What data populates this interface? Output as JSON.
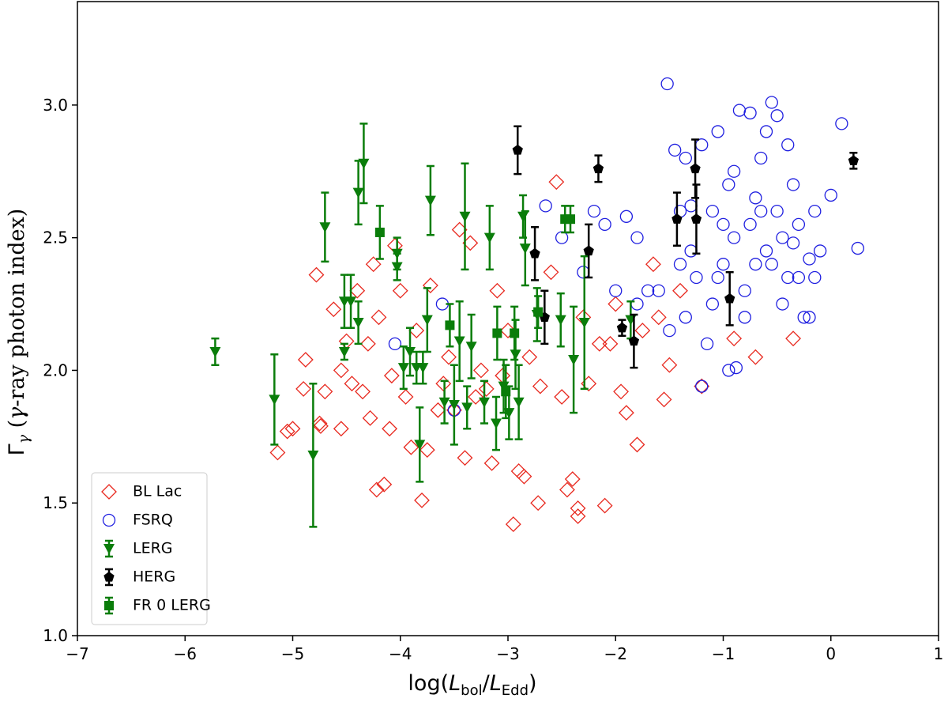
{
  "chart_data": {
    "type": "scatter",
    "xlabel": [
      "log(",
      "L",
      "bol",
      "/",
      "L",
      "Edd",
      ")"
    ],
    "ylabel": [
      "Γ",
      "γ",
      " (",
      "γ",
      "-ray photon index)"
    ],
    "xlim": [
      -7,
      1
    ],
    "ylim": [
      1,
      3.39
    ],
    "xticks": [
      {
        "value": -7,
        "label": "−7"
      },
      {
        "value": -6,
        "label": "−6"
      },
      {
        "value": -5,
        "label": "−5"
      },
      {
        "value": -4,
        "label": "−4"
      },
      {
        "value": -3,
        "label": "−3"
      },
      {
        "value": -2,
        "label": "−2"
      },
      {
        "value": -1,
        "label": "−1"
      },
      0,
      1
    ],
    "yticks": [
      {
        "value": 1,
        "label": "1.0"
      },
      1.5,
      {
        "value": 2,
        "label": "2.0"
      },
      2.5,
      {
        "value": 3,
        "label": "3.0"
      }
    ],
    "legend": "lower left",
    "series": [
      {
        "name": "BL Lac",
        "color": "#e8281e",
        "marker": "diamond",
        "x": [
          -5.14,
          -5.05,
          -5.0,
          -4.88,
          -4.9,
          -4.78,
          -4.75,
          -4.74,
          -4.7,
          -4.62,
          -4.55,
          -4.55,
          -4.5,
          -4.45,
          -4.4,
          -4.35,
          -4.3,
          -4.28,
          -4.25,
          -4.2,
          -4.22,
          -4.15,
          -4.1,
          -4.08,
          -4.05,
          -4.0,
          -3.95,
          -3.9,
          -3.85,
          -3.8,
          -3.75,
          -3.72,
          -3.65,
          -3.6,
          -3.55,
          -3.45,
          -3.4,
          -3.35,
          -3.3,
          -3.25,
          -3.2,
          -3.15,
          -3.1,
          -3.05,
          -2.95,
          -2.9,
          -2.85,
          -2.8,
          -2.72,
          -2.7,
          -2.6,
          -2.55,
          -2.5,
          -2.45,
          -2.4,
          -2.35,
          -2.35,
          -2.3,
          -2.25,
          -2.1,
          -2.05,
          -2.0,
          -1.95,
          -1.9,
          -1.8,
          -1.75,
          -1.6,
          -1.55,
          -1.5,
          -1.4,
          -1.2,
          -0.9,
          -0.7,
          -0.35,
          -1.65,
          -2.15,
          -3.0,
          -3.5
        ],
        "values": [
          1.69,
          1.77,
          1.78,
          2.04,
          1.93,
          2.36,
          1.8,
          1.79,
          1.92,
          2.23,
          1.78,
          2.0,
          2.11,
          1.95,
          2.3,
          1.92,
          2.1,
          1.82,
          2.4,
          2.2,
          1.55,
          1.57,
          1.78,
          1.98,
          2.47,
          2.3,
          1.9,
          1.71,
          2.15,
          1.51,
          1.7,
          2.32,
          1.85,
          1.95,
          2.05,
          2.53,
          1.67,
          2.48,
          1.9,
          2.0,
          1.93,
          1.65,
          2.3,
          1.98,
          1.42,
          1.62,
          1.6,
          2.05,
          1.5,
          1.94,
          2.37,
          2.71,
          1.9,
          1.55,
          1.59,
          1.45,
          1.48,
          2.2,
          1.95,
          1.49,
          2.1,
          2.25,
          1.92,
          1.84,
          1.72,
          2.15,
          2.2,
          1.89,
          2.02,
          2.3,
          1.94,
          2.12,
          2.05,
          2.12,
          2.4,
          2.1,
          2.15,
          1.85
        ]
      },
      {
        "name": "FSRQ",
        "color": "#1f1fe0",
        "marker": "circle",
        "x": [
          -3.61,
          -4.05,
          -3.5,
          -2.65,
          -2.5,
          -2.3,
          -2.2,
          -2.1,
          -1.9,
          -1.8,
          -1.7,
          -1.52,
          -1.45,
          -1.35,
          -1.3,
          -1.2,
          -1.1,
          -1.05,
          -1.0,
          -0.95,
          -0.9,
          -0.85,
          -0.8,
          -0.75,
          -0.7,
          -0.65,
          -0.6,
          -0.55,
          -0.5,
          -0.45,
          -0.4,
          -0.35,
          -0.3,
          -0.25,
          -0.2,
          -0.15,
          -0.1,
          0.0,
          0.1,
          0.25,
          -1.6,
          -1.5,
          -1.4,
          -1.25,
          -1.15,
          -1.1,
          -0.95,
          -0.88,
          -1.2,
          -0.8,
          -0.7,
          -0.6,
          -0.5,
          -0.45,
          -0.3,
          -0.2,
          -1.0,
          -1.3,
          -0.9,
          -0.75,
          -0.55,
          -0.35,
          -1.05,
          -1.4,
          -1.8,
          -2.0,
          -0.65,
          -0.4,
          -0.15,
          -1.35
        ],
        "values": [
          2.25,
          2.1,
          1.85,
          2.62,
          2.5,
          2.37,
          2.6,
          2.55,
          2.58,
          2.5,
          2.3,
          3.08,
          2.83,
          2.8,
          2.45,
          2.85,
          2.6,
          2.9,
          2.4,
          2.7,
          2.5,
          2.98,
          2.2,
          2.97,
          2.4,
          2.6,
          2.9,
          3.01,
          2.96,
          2.5,
          2.35,
          2.7,
          2.55,
          2.2,
          2.42,
          2.6,
          2.45,
          2.66,
          2.93,
          2.46,
          2.3,
          2.15,
          2.4,
          2.35,
          2.1,
          2.25,
          2.0,
          2.01,
          1.94,
          2.3,
          2.65,
          2.45,
          2.6,
          2.25,
          2.35,
          2.2,
          2.55,
          2.62,
          2.75,
          2.55,
          2.4,
          2.48,
          2.35,
          2.6,
          2.25,
          2.3,
          2.8,
          2.85,
          2.35,
          2.2
        ]
      },
      {
        "name": "LERG",
        "color": "#0a7d0a",
        "marker": "triangle-down",
        "x": [
          -5.72,
          -5.17,
          -4.81,
          -4.7,
          -4.52,
          -4.46,
          -4.52,
          -4.39,
          -4.34,
          -4.39,
          -4.03,
          -4.03,
          -3.97,
          -3.91,
          -3.85,
          -3.82,
          -3.79,
          -3.75,
          -3.72,
          -3.59,
          -3.5,
          -3.45,
          -3.4,
          -3.38,
          -3.34,
          -3.22,
          -3.17,
          -3.11,
          -3.04,
          -2.99,
          -2.93,
          -2.9,
          -2.86,
          -2.84,
          -2.73,
          -2.51,
          -2.39,
          -2.29,
          -1.86
        ],
        "values": [
          2.07,
          1.89,
          1.68,
          2.54,
          2.26,
          2.26,
          2.07,
          2.67,
          2.78,
          2.18,
          2.39,
          2.44,
          2.01,
          2.07,
          2.01,
          1.72,
          2.01,
          2.19,
          2.64,
          1.88,
          1.87,
          2.11,
          2.58,
          1.86,
          2.09,
          1.88,
          2.5,
          1.8,
          1.94,
          1.84,
          2.06,
          1.88,
          2.58,
          2.46,
          2.21,
          2.19,
          2.04,
          2.18,
          2.19
        ],
        "yerr": [
          0.05,
          0.17,
          0.27,
          0.13,
          0.1,
          0.1,
          0.03,
          0.12,
          0.15,
          0.08,
          0.05,
          0.06,
          0.08,
          0.09,
          0.06,
          0.14,
          0.06,
          0.12,
          0.13,
          0.08,
          0.15,
          0.15,
          0.2,
          0.08,
          0.12,
          0.08,
          0.12,
          0.1,
          0.1,
          0.1,
          0.13,
          0.14,
          0.08,
          0.14,
          0.1,
          0.1,
          0.2,
          0.25,
          0.07
        ]
      },
      {
        "name": "HERG",
        "color": "#000000",
        "marker": "pentagon",
        "x": [
          -2.91,
          -2.75,
          -2.66,
          -2.25,
          -2.16,
          -1.94,
          -1.83,
          -1.43,
          -1.26,
          -1.25,
          -0.94,
          0.21
        ],
        "values": [
          2.83,
          2.44,
          2.2,
          2.45,
          2.76,
          2.16,
          2.11,
          2.57,
          2.76,
          2.57,
          2.27,
          2.79
        ],
        "yerr": [
          0.09,
          0.1,
          0.1,
          0.1,
          0.05,
          0.03,
          0.1,
          0.1,
          0.11,
          0.13,
          0.1,
          0.03
        ]
      },
      {
        "name": "FR 0 LERG",
        "color": "#0a7d0a",
        "marker": "square",
        "x": [
          -4.19,
          -3.54,
          -3.1,
          -3.02,
          -2.94,
          -2.72,
          -2.47,
          -2.42
        ],
        "values": [
          2.52,
          2.17,
          2.14,
          1.92,
          2.14,
          2.22,
          2.57,
          2.57
        ],
        "yerr": [
          0.1,
          0.08,
          0.1,
          0.1,
          0.1,
          0.06,
          0.05,
          0.05
        ]
      }
    ]
  }
}
